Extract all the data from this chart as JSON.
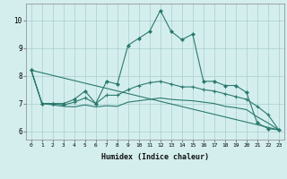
{
  "xlabel": "Humidex (Indice chaleur)",
  "ylabel": "",
  "xlim": [
    -0.5,
    23.5
  ],
  "ylim": [
    5.7,
    10.6
  ],
  "yticks": [
    6,
    7,
    8,
    9,
    10
  ],
  "xticks": [
    0,
    1,
    2,
    3,
    4,
    5,
    6,
    7,
    8,
    9,
    10,
    11,
    12,
    13,
    14,
    15,
    16,
    17,
    18,
    19,
    20,
    21,
    22,
    23
  ],
  "bg_color": "#d4eeee",
  "line_color": "#2a7a6e",
  "grid_color": "#aacece",
  "line1_x": [
    0,
    1,
    2,
    3,
    4,
    5,
    6,
    7,
    8,
    9,
    10,
    11,
    12,
    13,
    14,
    15,
    16,
    17,
    18,
    19,
    20,
    21,
    22,
    23
  ],
  "line1_y": [
    8.2,
    7.0,
    7.0,
    7.0,
    7.15,
    7.45,
    7.0,
    7.8,
    7.7,
    9.1,
    9.35,
    9.6,
    10.35,
    9.6,
    9.3,
    9.5,
    7.8,
    7.8,
    7.65,
    7.65,
    7.4,
    6.3,
    6.1,
    6.05
  ],
  "line2_x": [
    0,
    1,
    2,
    3,
    4,
    5,
    6,
    7,
    8,
    9,
    10,
    11,
    12,
    13,
    14,
    15,
    16,
    17,
    18,
    19,
    20,
    21,
    22,
    23
  ],
  "line2_y": [
    8.2,
    7.0,
    7.0,
    6.95,
    7.05,
    7.2,
    7.0,
    7.3,
    7.3,
    7.5,
    7.65,
    7.75,
    7.8,
    7.7,
    7.6,
    7.6,
    7.5,
    7.45,
    7.35,
    7.25,
    7.15,
    6.9,
    6.6,
    6.05
  ],
  "line3_x": [
    0,
    1,
    2,
    3,
    4,
    5,
    6,
    7,
    8,
    9,
    10,
    11,
    12,
    13,
    14,
    15,
    16,
    17,
    18,
    19,
    20,
    21,
    22,
    23
  ],
  "line3_y": [
    8.2,
    7.0,
    6.95,
    6.9,
    6.88,
    6.95,
    6.88,
    6.92,
    6.9,
    7.05,
    7.1,
    7.15,
    7.2,
    7.15,
    7.12,
    7.1,
    7.05,
    7.0,
    6.9,
    6.85,
    6.78,
    6.52,
    6.3,
    6.05
  ],
  "line4_x": [
    0,
    23
  ],
  "line4_y": [
    8.2,
    6.05
  ]
}
